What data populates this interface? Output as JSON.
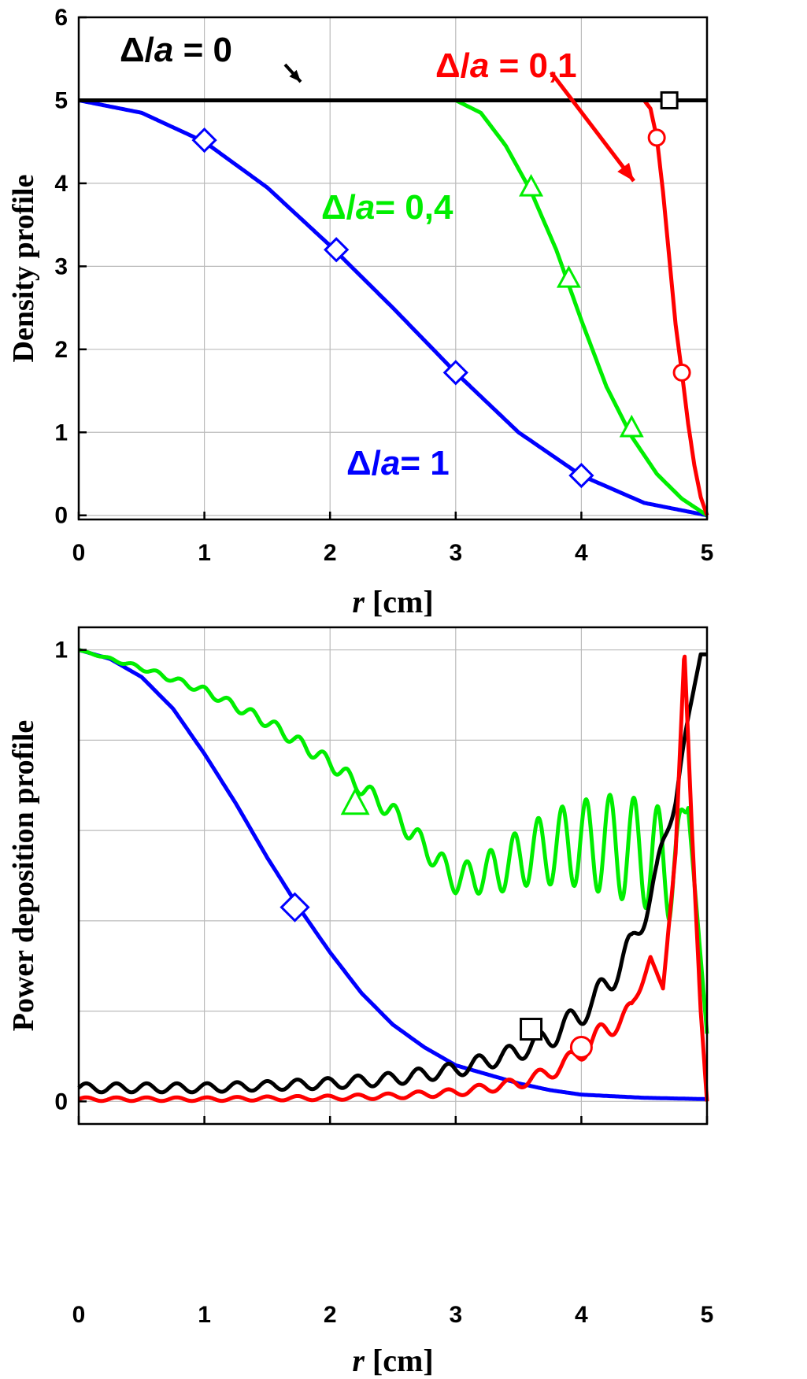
{
  "chart_data": [
    {
      "type": "line",
      "title": "",
      "xlabel_var": "r",
      "xlabel_unit": " [cm]",
      "ylabel": "Density profile",
      "xlim": [
        0,
        5
      ],
      "ylim": [
        -0.05,
        6
      ],
      "xticks": [
        "0",
        "1",
        "2",
        "3",
        "4",
        "5"
      ],
      "yticks": [
        "0",
        "1",
        "2",
        "3",
        "4",
        "5",
        "6"
      ],
      "grid": true,
      "series": [
        {
          "color": "#0000ff",
          "marker": "diamond",
          "x": [
            0,
            0.5,
            1.0,
            1.5,
            2.0,
            2.5,
            3.0,
            3.5,
            4.0,
            4.5,
            5.0
          ],
          "y": [
            5.0,
            4.85,
            4.5,
            3.95,
            3.25,
            2.5,
            1.72,
            1.0,
            0.48,
            0.15,
            0.0
          ],
          "markers_x": [
            1.0,
            2.05,
            3.0,
            4.0
          ],
          "markers_y": [
            4.52,
            3.2,
            1.72,
            0.48
          ]
        },
        {
          "color": "#00ee00",
          "marker": "triangle",
          "x": [
            0,
            3.0,
            3.2,
            3.4,
            3.6,
            3.8,
            4.0,
            4.2,
            4.4,
            4.6,
            4.8,
            5.0
          ],
          "y": [
            5.0,
            5.0,
            4.85,
            4.45,
            3.9,
            3.2,
            2.35,
            1.55,
            0.95,
            0.5,
            0.2,
            0.0
          ],
          "markers_x": [
            3.6,
            3.9,
            4.4
          ],
          "markers_y": [
            3.95,
            2.85,
            1.05
          ]
        },
        {
          "color": "#ff0000",
          "marker": "circle",
          "x": [
            0,
            4.5,
            4.55,
            4.6,
            4.65,
            4.7,
            4.75,
            4.8,
            4.85,
            4.9,
            4.95,
            5.0
          ],
          "y": [
            5.0,
            5.0,
            4.9,
            4.55,
            3.9,
            3.1,
            2.3,
            1.72,
            1.1,
            0.6,
            0.22,
            0.0
          ],
          "markers_x": [
            4.6,
            4.8
          ],
          "markers_y": [
            4.55,
            1.72
          ]
        },
        {
          "color": "#000000",
          "marker": "square",
          "x": [
            0,
            5.0
          ],
          "y": [
            5.0,
            5.0
          ],
          "markers_x": [
            4.7
          ],
          "markers_y": [
            5.0
          ]
        }
      ],
      "annotations": [
        {
          "prefix": "Δ/",
          "var": "a",
          "suffix": " = 0",
          "color": "#000000"
        },
        {
          "prefix": "Δ/",
          "var": "a",
          "suffix": " = 0,1",
          "color": "#ff0000"
        },
        {
          "prefix": "Δ/",
          "var": "a",
          "suffix": "= 0,4",
          "color": "#00ee00"
        },
        {
          "prefix": "Δ/",
          "var": "a",
          "suffix": "= 1",
          "color": "#0000ff"
        }
      ]
    },
    {
      "type": "line",
      "title": "",
      "xlabel_var": "r",
      "xlabel_unit": " [cm]",
      "ylabel": "Power deposition profile",
      "xlim": [
        0,
        5
      ],
      "ylim": [
        -0.05,
        1.05
      ],
      "xticks": [
        "0",
        "1",
        "2",
        "3",
        "4",
        "5"
      ],
      "yticks": [
        "0",
        "1"
      ],
      "grid": true,
      "series": [
        {
          "color": "#0000ff",
          "marker": "diamond",
          "x": [
            0,
            0.25,
            0.5,
            0.75,
            1.0,
            1.25,
            1.5,
            1.75,
            2.0,
            2.25,
            2.5,
            2.75,
            3.0,
            3.25,
            3.5,
            3.75,
            4.0,
            4.5,
            5.0
          ],
          "y": [
            1.0,
            0.98,
            0.94,
            0.87,
            0.77,
            0.66,
            0.54,
            0.43,
            0.33,
            0.24,
            0.17,
            0.12,
            0.08,
            0.06,
            0.04,
            0.025,
            0.015,
            0.008,
            0.005
          ],
          "markers_x": [
            1.72
          ],
          "markers_y": [
            0.43
          ]
        },
        {
          "color": "#00ee00",
          "marker": "triangle",
          "x": [
            0,
            0.5,
            1.0,
            1.5,
            2.0,
            2.5,
            2.8,
            3.0,
            3.3,
            3.6,
            3.9,
            4.2,
            4.5,
            4.7,
            4.85,
            5.0
          ],
          "y": [
            1.0,
            0.96,
            0.91,
            0.84,
            0.75,
            0.64,
            0.55,
            0.49,
            0.51,
            0.55,
            0.57,
            0.57,
            0.55,
            0.52,
            0.65,
            0.15
          ],
          "osc_amp": [
            0.0,
            0.005,
            0.008,
            0.012,
            0.015,
            0.02,
            0.025,
            0.03,
            0.05,
            0.07,
            0.09,
            0.11,
            0.12,
            0.12,
            0.0,
            0.0
          ],
          "osc_period": 0.19,
          "markers_x": [
            2.2
          ],
          "markers_y": [
            0.66
          ]
        },
        {
          "color": "#000000",
          "marker": "square",
          "x": [
            0,
            0.5,
            1.0,
            1.5,
            2.0,
            2.5,
            3.0,
            3.5,
            3.8,
            4.1,
            4.4,
            4.6,
            4.75,
            4.85,
            4.95,
            5.0
          ],
          "y": [
            0.03,
            0.03,
            0.03,
            0.035,
            0.04,
            0.05,
            0.07,
            0.11,
            0.15,
            0.22,
            0.34,
            0.5,
            0.68,
            0.85,
            0.99,
            0.99
          ],
          "osc_amp": [
            0.01,
            0.01,
            0.01,
            0.01,
            0.012,
            0.014,
            0.016,
            0.02,
            0.025,
            0.03,
            0.035,
            0.03,
            0.02,
            0.0,
            0.0,
            0.0
          ],
          "osc_period": 0.24,
          "markers_x": [
            3.6
          ],
          "markers_y": [
            0.16
          ]
        },
        {
          "color": "#ff0000",
          "marker": "circle",
          "x": [
            0,
            1.0,
            2.0,
            2.5,
            3.0,
            3.5,
            3.8,
            4.0,
            4.2,
            4.4,
            4.55,
            4.65,
            4.75,
            4.82,
            4.88,
            4.95,
            5.0
          ],
          "y": [
            0.005,
            0.005,
            0.008,
            0.012,
            0.02,
            0.04,
            0.07,
            0.11,
            0.16,
            0.2,
            0.32,
            0.25,
            0.55,
            1.0,
            0.6,
            0.2,
            0.0
          ],
          "osc_amp": [
            0.004,
            0.004,
            0.005,
            0.006,
            0.008,
            0.012,
            0.015,
            0.02,
            0.025,
            0.02,
            0.0,
            0.0,
            0.0,
            0.0,
            0.0,
            0.0,
            0.0
          ],
          "osc_period": 0.24,
          "markers_x": [
            4.0
          ],
          "markers_y": [
            0.12
          ]
        }
      ]
    }
  ]
}
